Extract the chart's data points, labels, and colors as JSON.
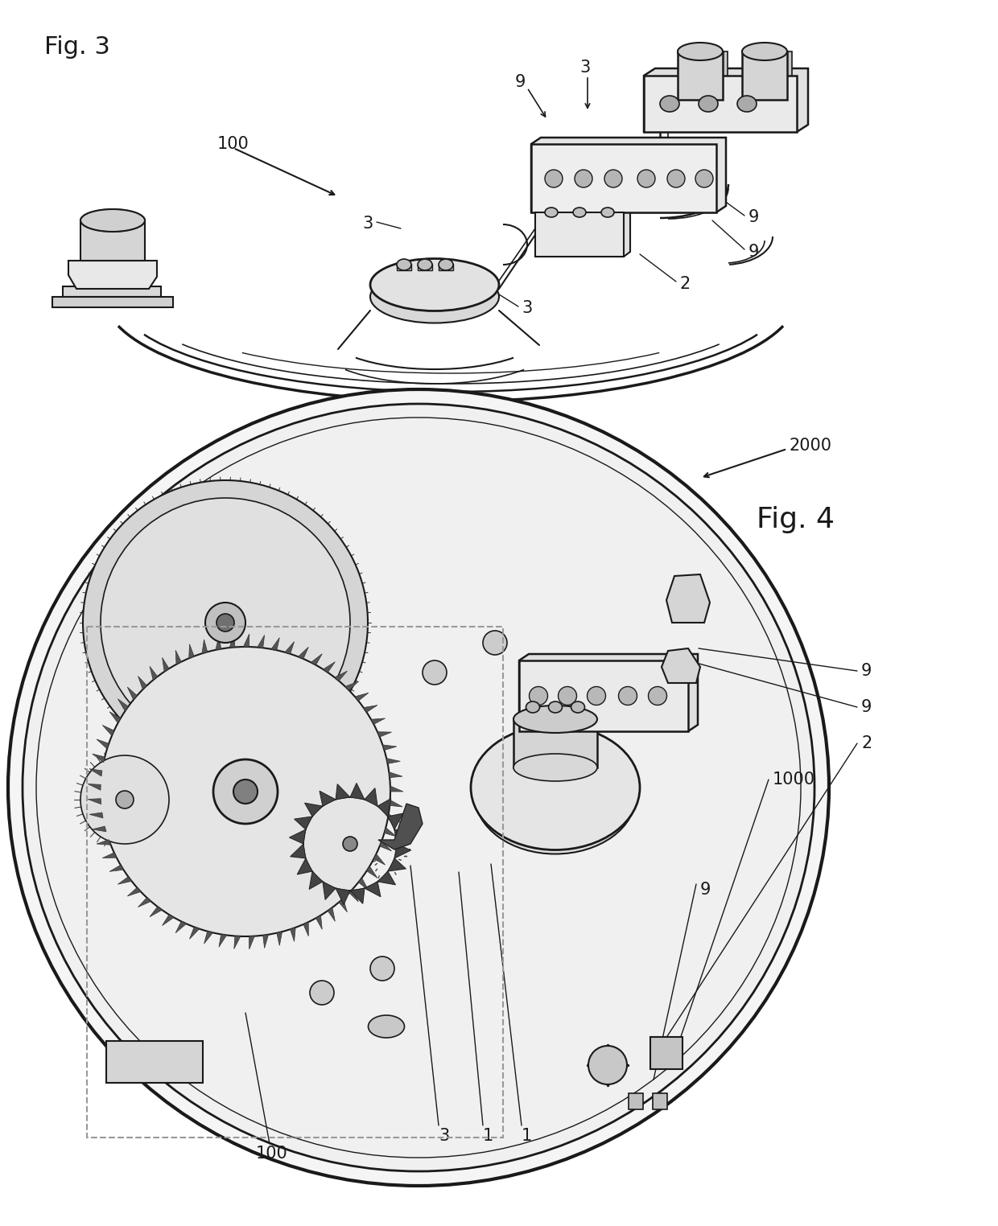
{
  "background_color": "#ffffff",
  "fig_width": 12.4,
  "fig_height": 15.24,
  "line_color": "#1a1a1a",
  "line_width": 1.2,
  "fig3_label": "Fig. 3",
  "fig4_label": "Fig. 4",
  "label_fontsize": 22,
  "ann_fontsize": 15,
  "fig4_big_fontsize": 26
}
